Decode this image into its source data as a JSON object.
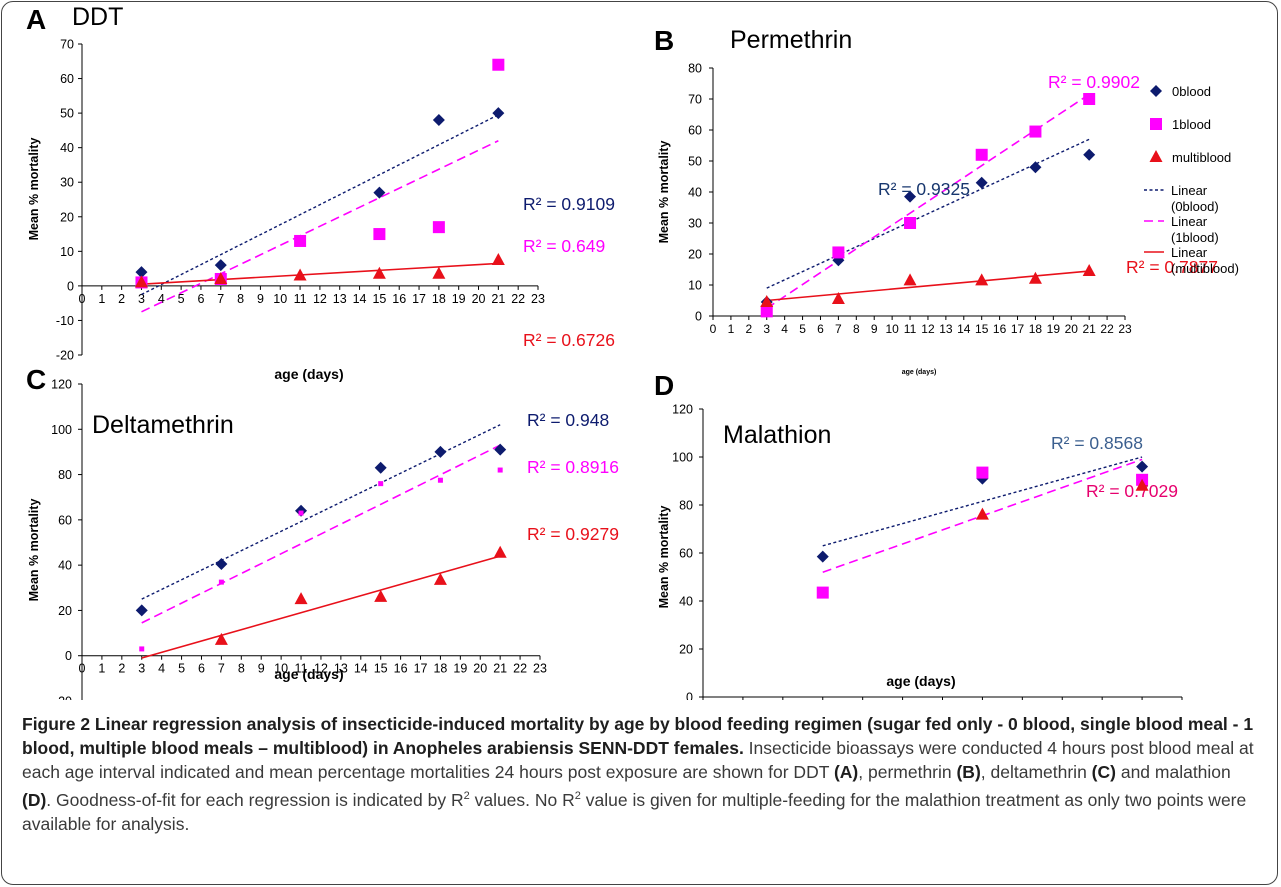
{
  "caption": {
    "title": "Figure 2 Linear regression analysis of insecticide-induced mortality by age by blood feeding regimen (sugar fed only - 0 blood, single blood meal - 1 blood, multiple blood meals – multiblood) in Anopheles arabiensis SENN-DDT females.",
    "body_1": " Insecticide bioassays were conducted 4 hours post blood meal at each age interval indicated and mean percentage mortalities 24 hours post exposure are shown for DDT ",
    "ref_a": "(A)",
    "body_2": ", permethrin ",
    "ref_b": "(B)",
    "body_3": ", deltamethrin ",
    "ref_c": "(C)",
    "body_4": " and malathion ",
    "ref_d": "(D)",
    "body_5": ". Goodness-of-fit for each regression is indicated by R",
    "sup_1": "2",
    "body_6": " values. No R",
    "sup_2": "2",
    "body_7": " value is given for multiple-feeding for the malathion treatment as only two points were available for analysis."
  },
  "colors": {
    "zero_blood": "#0d1b6e",
    "one_blood": "#ff00ff",
    "multiblood": "#e8101a",
    "r2_dark_blue": "#17366e",
    "r2_steel_blue": "#3b5f8f",
    "r2_magenta_pink": "#e6006e"
  },
  "chart_data": [
    {
      "panel": "A",
      "title": "DDT",
      "type": "scatter",
      "xlabel": "age (days)",
      "ylabel": "Mean % mortality",
      "xlim": [
        0,
        23
      ],
      "ylim": [
        -20,
        70
      ],
      "xticks": [
        0,
        1,
        2,
        3,
        4,
        5,
        6,
        7,
        8,
        9,
        10,
        11,
        12,
        13,
        14,
        15,
        16,
        17,
        18,
        19,
        20,
        21,
        22,
        23
      ],
      "yticks": [
        -20,
        -10,
        0,
        10,
        20,
        30,
        40,
        50,
        60,
        70
      ],
      "series": [
        {
          "key": "0blood",
          "marker": "diamond",
          "x": [
            3,
            7,
            15,
            18,
            21
          ],
          "y": [
            4,
            6,
            27,
            48,
            50
          ],
          "trend": {
            "x": [
              3,
              21
            ],
            "y": [
              -2.5,
              49.5
            ]
          },
          "r2": "R² = 0.9109",
          "r2_color": "#0d1b6e"
        },
        {
          "key": "1blood",
          "marker": "square",
          "x": [
            3,
            7,
            11,
            15,
            18,
            21
          ],
          "y": [
            1,
            2,
            13,
            15,
            17,
            64
          ],
          "trend": {
            "x": [
              3,
              21
            ],
            "y": [
              -7.5,
              42
            ]
          },
          "r2": "R² = 0.649",
          "r2_color": "#ff00ff"
        },
        {
          "key": "multiblood",
          "marker": "triangle",
          "x": [
            3,
            7,
            11,
            15,
            18,
            21
          ],
          "y": [
            1,
            2,
            3,
            3.5,
            3.5,
            7.5
          ],
          "trend": {
            "x": [
              3,
              21
            ],
            "y": [
              0.5,
              6.5
            ]
          },
          "r2": "R² = 0.6726",
          "r2_color": "#e8101a"
        }
      ]
    },
    {
      "panel": "B",
      "title": "Permethrin",
      "type": "scatter",
      "xlabel": "age (days)",
      "ylabel": "Mean % mortality",
      "xlim": [
        0,
        23
      ],
      "ylim": [
        0,
        80
      ],
      "xticks": [
        0,
        1,
        2,
        3,
        4,
        5,
        6,
        7,
        8,
        9,
        10,
        11,
        12,
        13,
        14,
        15,
        16,
        17,
        18,
        19,
        20,
        21,
        22,
        23
      ],
      "yticks": [
        0,
        10,
        20,
        30,
        40,
        50,
        60,
        70,
        80
      ],
      "series": [
        {
          "key": "0blood",
          "marker": "diamond",
          "x": [
            3,
            7,
            11,
            15,
            18,
            21
          ],
          "y": [
            4.5,
            18,
            38.5,
            43,
            48,
            52
          ],
          "trend": {
            "x": [
              3,
              21
            ],
            "y": [
              9,
              57
            ]
          },
          "r2": "R² = 0.9325",
          "r2_color": "#17366e"
        },
        {
          "key": "1blood",
          "marker": "square",
          "x": [
            3,
            7,
            11,
            15,
            18,
            21
          ],
          "y": [
            1.5,
            20.5,
            30,
            52,
            59.5,
            70
          ],
          "trend": {
            "x": [
              3,
              21
            ],
            "y": [
              2.5,
              71.5
            ]
          },
          "r2": "R² = 0.9902",
          "r2_color": "#ff00ff"
        },
        {
          "key": "multiblood",
          "marker": "triangle",
          "x": [
            3,
            7,
            11,
            15,
            18,
            21
          ],
          "y": [
            4.5,
            5.5,
            11.5,
            11.5,
            12,
            14.5
          ],
          "trend": {
            "x": [
              3,
              21
            ],
            "y": [
              5,
              14.5
            ]
          },
          "r2": "R² = 0.7877",
          "r2_color": "#e8101a"
        }
      ],
      "legend": [
        {
          "key": "0blood",
          "marker": "diamond",
          "label": "0blood"
        },
        {
          "key": "1blood",
          "marker": "square",
          "label": "1blood"
        },
        {
          "key": "multiblood",
          "marker": "triangle",
          "label": "multiblood"
        },
        {
          "key": "0blood",
          "marker": "dotted-line",
          "label_1": "Linear",
          "label_2": "(0blood)"
        },
        {
          "key": "1blood",
          "marker": "dashed-line",
          "label_1": "Linear",
          "label_2": "(1blood)"
        },
        {
          "key": "multiblood",
          "marker": "solid-line",
          "label_1": "Linear",
          "label_2": "(multiblood)"
        }
      ]
    },
    {
      "panel": "C",
      "title": "Deltamethrin",
      "type": "scatter",
      "xlabel": "age (days)",
      "ylabel": "Mean % mortality",
      "xlim": [
        0,
        23
      ],
      "ylim": [
        -20,
        120
      ],
      "xticks": [
        0,
        1,
        2,
        3,
        4,
        5,
        6,
        7,
        8,
        9,
        10,
        11,
        12,
        13,
        14,
        15,
        16,
        17,
        18,
        19,
        20,
        21,
        22,
        23
      ],
      "yticks": [
        -20,
        0,
        20,
        40,
        60,
        80,
        100,
        120
      ],
      "series": [
        {
          "key": "0blood",
          "marker": "diamond",
          "x": [
            3,
            7,
            11,
            15,
            18,
            21
          ],
          "y": [
            20,
            40.5,
            64,
            83,
            90,
            91
          ],
          "trend": {
            "x": [
              3,
              21
            ],
            "y": [
              25,
              102
            ]
          },
          "r2": "R² = 0.948",
          "r2_color": "#0d1b6e"
        },
        {
          "key": "1blood",
          "marker": "square-small",
          "x": [
            3,
            7,
            11,
            15,
            18,
            21
          ],
          "y": [
            3,
            32.5,
            63,
            76,
            77.5,
            82
          ],
          "trend": {
            "x": [
              3,
              21
            ],
            "y": [
              14.5,
              93
            ]
          },
          "r2": "R² = 0.8916",
          "r2_color": "#ff00ff"
        },
        {
          "key": "multiblood",
          "marker": "triangle",
          "x": [
            7,
            11,
            15,
            18,
            21
          ],
          "y": [
            7,
            25,
            26,
            33.5,
            45.5
          ],
          "trend": {
            "x": [
              3,
              21
            ],
            "y": [
              -1,
              44
            ]
          },
          "r2": "R² = 0.9279",
          "r2_color": "#e8101a"
        }
      ]
    },
    {
      "panel": "D",
      "title": "Malathion",
      "type": "scatter",
      "xlabel": "age (days)",
      "ylabel": "Mean % mortality",
      "xlim": [
        0,
        12
      ],
      "ylim": [
        0,
        120
      ],
      "xticks": [
        0,
        1,
        2,
        3,
        4,
        5,
        6,
        7,
        8,
        9,
        10,
        11,
        12
      ],
      "yticks": [
        0,
        20,
        40,
        60,
        80,
        100,
        120
      ],
      "series": [
        {
          "key": "0blood",
          "marker": "diamond",
          "x": [
            3,
            7,
            11
          ],
          "y": [
            58.5,
            91,
            96
          ],
          "trend": {
            "x": [
              3,
              11
            ],
            "y": [
              63,
              100
            ]
          },
          "r2": "R² = 0.8568",
          "r2_color": "#3b5f8f"
        },
        {
          "key": "1blood",
          "marker": "square",
          "x": [
            3,
            7,
            11
          ],
          "y": [
            43.5,
            93.5,
            90.5
          ],
          "trend": {
            "x": [
              3,
              11
            ],
            "y": [
              52,
              99
            ]
          },
          "r2": "R² = 0.7029",
          "r2_color": "#e6006e"
        },
        {
          "key": "multiblood",
          "marker": "triangle",
          "x": [
            7,
            11
          ],
          "y": [
            76,
            88
          ],
          "trend": null,
          "r2": "",
          "r2_color": "#e8101a"
        }
      ]
    }
  ]
}
